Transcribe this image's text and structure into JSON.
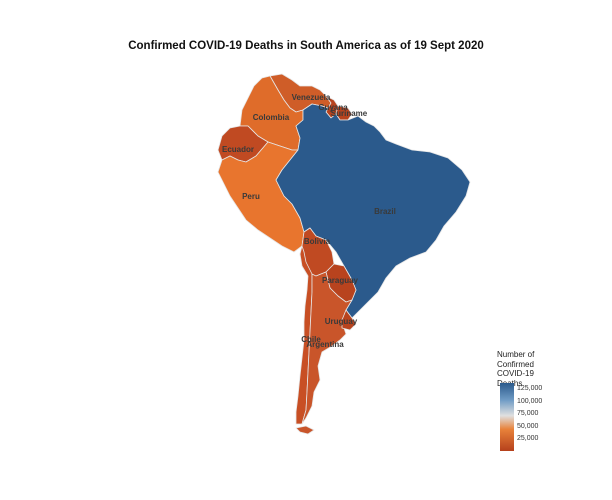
{
  "title": "Confirmed COVID-19 Deaths in South America as of 19 Sept 2020",
  "legend": {
    "title_lines": [
      "Number of",
      "Confirmed",
      "COVID-19",
      "Deaths"
    ],
    "ticks": [
      "125,000",
      "100,000",
      "75,000",
      "50,000",
      "25,000"
    ],
    "tick_values": [
      125000,
      100000,
      75000,
      50000,
      25000
    ],
    "range": [
      1000,
      136000
    ],
    "colors": {
      "high": "#2b5a8c",
      "mid_high": "#6f9bc5",
      "mid": "#e0e0e0",
      "mid_low": "#e8823a",
      "low": "#b5401c"
    }
  },
  "countries": [
    {
      "name": "Venezuela",
      "label": "Venezuela",
      "color": "#cf5d28"
    },
    {
      "name": "Guyana",
      "label": "Guyana",
      "color": "#b8431e"
    },
    {
      "name": "Suriname",
      "label": "Suriname",
      "color": "#b8431e"
    },
    {
      "name": "Colombia",
      "label": "Colombia",
      "color": "#df6c2a"
    },
    {
      "name": "Ecuador",
      "label": "Ecuador",
      "color": "#c04a22"
    },
    {
      "name": "Peru",
      "label": "Peru",
      "color": "#e8752e"
    },
    {
      "name": "Brazil",
      "label": "Brazil",
      "color": "#2b5a8c"
    },
    {
      "name": "Bolivia",
      "label": "Bolivia",
      "color": "#c04a22"
    },
    {
      "name": "Paraguay",
      "label": "Paraguay",
      "color": "#b8431e"
    },
    {
      "name": "Chile",
      "label": "Chile",
      "color": "#c84f24"
    },
    {
      "name": "Argentina",
      "label": "Argentina",
      "color": "#c9552a"
    },
    {
      "name": "Uruguay",
      "label": "Uruguay",
      "color": "#b8431e"
    }
  ]
}
